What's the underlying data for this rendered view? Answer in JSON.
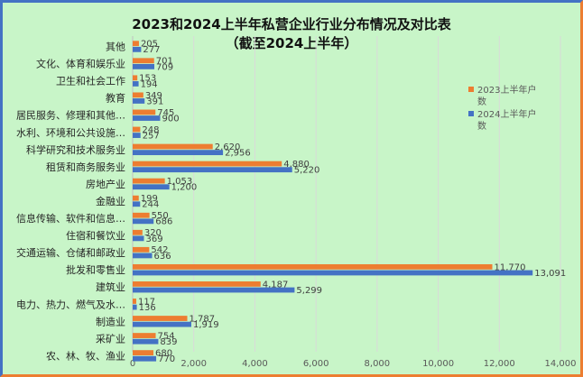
{
  "chart_data": {
    "type": "bar",
    "orientation": "horizontal",
    "title": "2023和2024上半年私营企业行业分布情况及对比表",
    "subtitle": "（截至2024上半年）",
    "categories": [
      "其他",
      "文化、体育和娱乐业",
      "卫生和社会工作",
      "教育",
      "居民服务、修理和其他…",
      "水利、环境和公共设施…",
      "科学研究和技术服务业",
      "租赁和商务服务业",
      "房地产业",
      "金融业",
      "信息传输、软件和信息…",
      "住宿和餐饮业",
      "交通运输、仓储和邮政业",
      "批发和零售业",
      "建筑业",
      "电力、热力、燃气及水…",
      "制造业",
      "采矿业",
      "农、林、牧、渔业"
    ],
    "series": [
      {
        "name": "2023上半年户数",
        "color": "#ed7d31",
        "values": [
          205,
          701,
          153,
          349,
          745,
          248,
          2620,
          4880,
          1053,
          199,
          550,
          320,
          542,
          11770,
          4187,
          117,
          1787,
          754,
          680
        ],
        "labels": [
          "205",
          "701",
          "153",
          "349",
          "745",
          "248",
          "2,620",
          "4,880",
          "1,053",
          "199",
          "550",
          "320",
          "542",
          "11,770",
          "4,187",
          "117",
          "1,787",
          "754",
          "680"
        ]
      },
      {
        "name": "2024上半年户数",
        "color": "#4472c4",
        "values": [
          277,
          709,
          194,
          391,
          900,
          257,
          2956,
          5220,
          1200,
          244,
          686,
          369,
          636,
          13091,
          5299,
          136,
          1919,
          839,
          770
        ],
        "labels": [
          "277",
          "709",
          "194",
          "391",
          "900",
          "257",
          "2,956",
          "5,220",
          "1,200",
          "244",
          "686",
          "369",
          "636",
          "13,091",
          "5,299",
          "136",
          "1,919",
          "839",
          "770"
        ]
      }
    ],
    "xlim": [
      0,
      14000
    ],
    "xticks": [
      0,
      2000,
      4000,
      6000,
      8000,
      10000,
      12000,
      14000
    ],
    "xtick_labels": [
      "0",
      "2,000",
      "4,000",
      "6,000",
      "8,000",
      "10,000",
      "12,000",
      "14,000"
    ],
    "grid": "vertical",
    "legend": "right"
  }
}
